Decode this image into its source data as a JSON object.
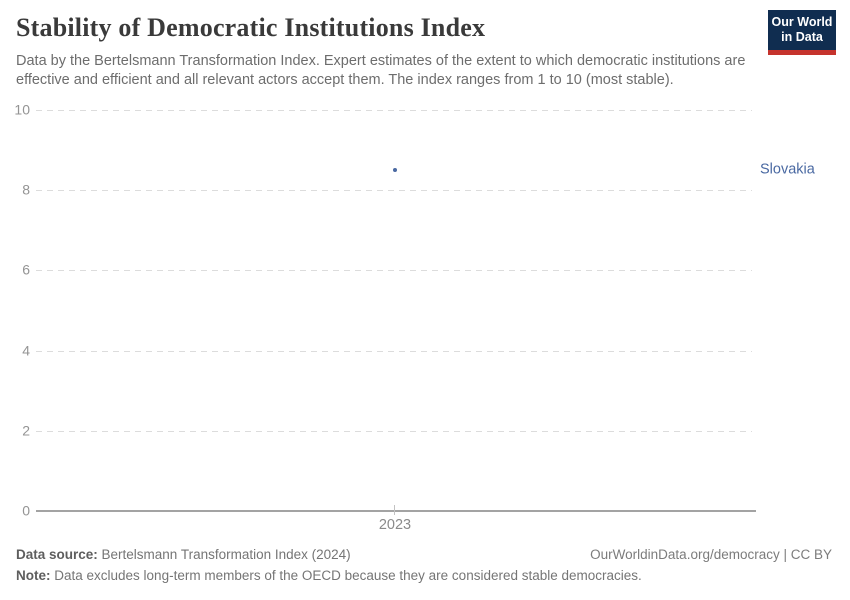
{
  "header": {
    "title": "Stability of Democratic Institutions Index",
    "subtitle": "Data by the Bertelsmann Transformation Index. Expert estimates of the extent to which democratic institutions are effective and efficient and all relevant actors accept them. The index ranges from 1 to 10 (most stable).",
    "logo": {
      "line1": "Our World",
      "line2": "in Data"
    }
  },
  "chart_data": {
    "type": "scatter",
    "title": "Stability of Democratic Institutions Index",
    "xlabel": "",
    "ylabel": "",
    "x_ticks": [
      "2023"
    ],
    "y_ticks": [
      0,
      2,
      4,
      6,
      8,
      10
    ],
    "ylim": [
      0,
      10
    ],
    "grid": "horizontal-dashed",
    "legend_position": "right-of-point",
    "series": [
      {
        "name": "Slovakia",
        "x": [
          2023
        ],
        "y": [
          8.5
        ],
        "color": "#4a69a2"
      }
    ]
  },
  "footer": {
    "source_label": "Data source:",
    "source_value": " Bertelsmann Transformation Index (2024)",
    "credit": "OurWorldinData.org/democracy | CC BY",
    "note_label": "Note:",
    "note_value": " Data excludes long-term members of the OECD because they are considered stable democracies."
  },
  "colors": {
    "logo_bg": "#102d50",
    "logo_bar": "#c5332d",
    "entity": "#4a69a2",
    "gridline": "#dcdcdc",
    "axis": "#a3a3a3",
    "tick_label": "#949494",
    "footer_text": "#757575"
  }
}
